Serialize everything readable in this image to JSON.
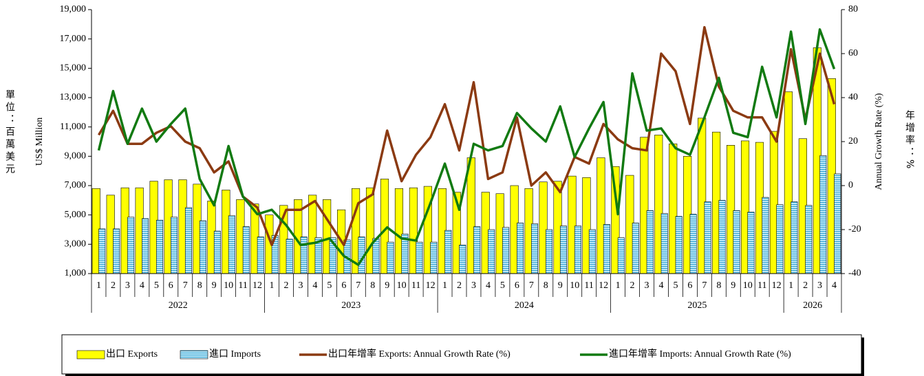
{
  "chart_data": {
    "type": "bar",
    "y_label": "US$ Million",
    "y2_label": "Annual Growth Rate (%)",
    "y_unit_note": "單位：百萬美元",
    "y2_unit_note": "年增率：%",
    "categories": [
      "1",
      "2",
      "3",
      "4",
      "5",
      "6",
      "7",
      "8",
      "9",
      "10",
      "11",
      "12",
      "1",
      "2",
      "3",
      "4",
      "5",
      "6",
      "7",
      "8",
      "9",
      "10",
      "11",
      "12",
      "1",
      "2",
      "3",
      "4",
      "5",
      "6",
      "7",
      "8",
      "9",
      "10",
      "11",
      "12",
      "1",
      "2",
      "3",
      "4",
      "5",
      "6",
      "7",
      "8",
      "9",
      "10",
      "11",
      "12",
      "1",
      "2",
      "3",
      "4"
    ],
    "groups": [
      "2022",
      "2023",
      "2024",
      "2025",
      "2026"
    ],
    "ylim": [
      1000,
      19000
    ],
    "yticks": [
      {
        "value": 1000,
        "label": "1,000"
      },
      {
        "value": 3000,
        "label": "3,000"
      },
      {
        "value": 5000,
        "label": "5,000"
      },
      {
        "value": 7000,
        "label": "7,000"
      },
      {
        "value": 9000,
        "label": "9,000"
      },
      {
        "value": 11000,
        "label": "11,000"
      },
      {
        "value": 13000,
        "label": "13,000"
      },
      {
        "value": 15000,
        "label": "15,000"
      },
      {
        "value": 17000,
        "label": "17,000"
      },
      {
        "value": 19000,
        "label": "19,000"
      }
    ],
    "y2lim": [
      -40,
      80
    ],
    "y2ticks": [
      -40,
      -20,
      0,
      20,
      40,
      60,
      80
    ],
    "series": [
      {
        "name": "出口 Exports",
        "type": "bar",
        "color": "#ffff00",
        "values": [
          6800,
          6350,
          6850,
          6850,
          7300,
          7400,
          7400,
          7100,
          5950,
          6700,
          6050,
          5750,
          5000,
          5650,
          6050,
          6350,
          6050,
          5350,
          6800,
          6850,
          7450,
          6800,
          6850,
          6950,
          6800,
          6550,
          8900,
          6550,
          6450,
          7000,
          6800,
          7250,
          7300,
          7650,
          7550,
          8900,
          8300,
          7700,
          10300,
          10450,
          9850,
          9000,
          11600,
          10650,
          9750,
          10050,
          9950,
          10700,
          13400,
          10200,
          16400,
          14300
        ]
      },
      {
        "name": "進口 Imports",
        "type": "bar",
        "color": "#9dd8ee",
        "values": [
          4050,
          4050,
          4850,
          4750,
          4650,
          4850,
          5500,
          4600,
          3900,
          4950,
          4200,
          3500,
          3600,
          3350,
          3500,
          3450,
          3450,
          3300,
          3500,
          3400,
          3150,
          3700,
          3150,
          3150,
          3950,
          2950,
          4200,
          4000,
          4150,
          4450,
          4400,
          4000,
          4250,
          4250,
          4000,
          4350,
          3450,
          4450,
          5300,
          5100,
          4900,
          5050,
          5900,
          6000,
          5300,
          5200,
          6200,
          5700,
          5900,
          5650,
          9050,
          7800
        ]
      },
      {
        "name": "出口年增率 Exports: Annual Growth Rate (%)",
        "type": "line",
        "axis": "y2",
        "color": "#8b3a12",
        "values": [
          23,
          34,
          19,
          19,
          24,
          27,
          20,
          17,
          6,
          11,
          -5,
          -10,
          -27,
          -11,
          -11,
          -7,
          -17,
          -27,
          -8,
          -4,
          25,
          2,
          14,
          22,
          37,
          16,
          47,
          3,
          6,
          31,
          0,
          6,
          -3,
          13,
          10,
          28,
          21,
          17,
          16,
          60,
          52,
          28,
          72,
          45,
          34,
          31,
          31,
          20,
          62,
          30,
          60,
          37
        ]
      },
      {
        "name": "進口年增率 Imports: Annual Growth Rate (%)",
        "type": "line",
        "axis": "y2",
        "color": "#127a12",
        "values": [
          16,
          43,
          19,
          35,
          20,
          28,
          35,
          3,
          -9,
          18,
          -5,
          -13,
          -11,
          -18,
          -27,
          -26,
          -24,
          -32,
          -36,
          -26,
          -19,
          -24,
          -25,
          -8,
          10,
          -11,
          19,
          16,
          18,
          33,
          26,
          20,
          36,
          13,
          26,
          38,
          -13,
          51,
          25,
          26,
          17,
          14,
          31,
          49,
          24,
          22,
          54,
          31,
          70,
          28,
          71,
          53
        ]
      }
    ]
  }
}
